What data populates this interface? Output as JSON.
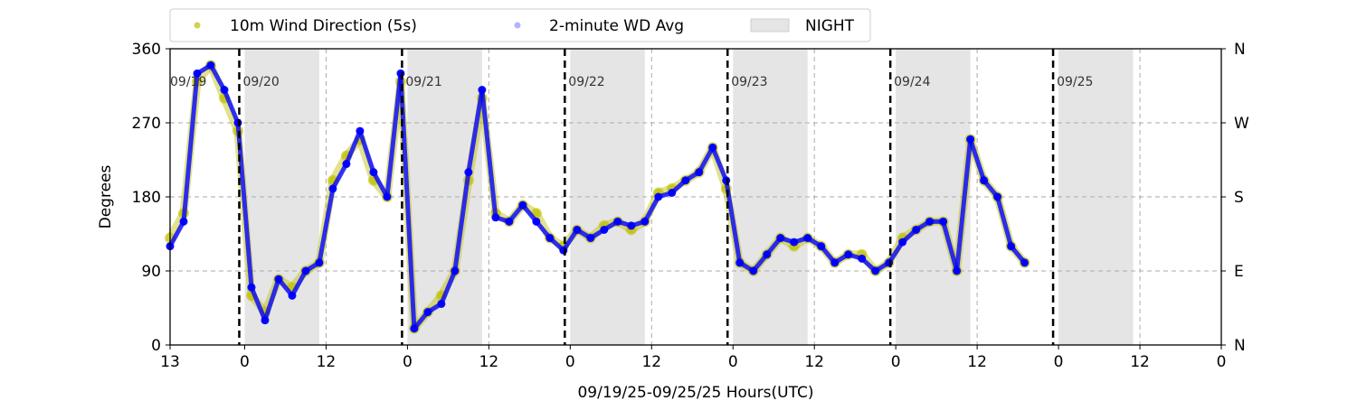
{
  "chart_data": {
    "type": "scatter",
    "xlabel": "09/19/25-09/25/25  Hours(UTC)",
    "ylabel": "Degrees",
    "x_unit": "hours (UTC)",
    "xlim": [
      "2025-09-19 13:00",
      "2025-09-26 00:00"
    ],
    "ylim": [
      0,
      360
    ],
    "yticks": [
      0,
      90,
      180,
      270,
      360
    ],
    "ytick_labels": [
      "0",
      "90",
      "180",
      "270",
      "360"
    ],
    "right_yticks": [
      0,
      90,
      180,
      270,
      360
    ],
    "right_ytick_labels": [
      "N",
      "E",
      "S",
      "W",
      "N"
    ],
    "xticks": [
      "2025-09-19 13:00",
      "2025-09-20 00:00",
      "2025-09-20 12:00",
      "2025-09-21 00:00",
      "2025-09-21 12:00",
      "2025-09-22 00:00",
      "2025-09-22 12:00",
      "2025-09-23 00:00",
      "2025-09-23 12:00",
      "2025-09-24 00:00",
      "2025-09-24 12:00",
      "2025-09-25 00:00",
      "2025-09-25 12:00",
      "2025-09-26 00:00"
    ],
    "xtick_labels": [
      "13",
      "0",
      "12",
      "0",
      "12",
      "0",
      "12",
      "0",
      "12",
      "0",
      "12",
      "0",
      "12",
      "0"
    ],
    "grid": "dashed gray at 90, 180, 270 and at 12 UTC",
    "legend_position": "top, above plot",
    "legend": [
      {
        "label": "10m Wind Direction (5s)",
        "marker": "dot",
        "color": "#bfbf00"
      },
      {
        "label": "2-minute WD Avg",
        "marker": "dot",
        "color": "#0000ff"
      },
      {
        "label": "NIGHT",
        "marker": "patch",
        "color": "#e5e5e5"
      }
    ],
    "day_labels": [
      {
        "text": "09/19",
        "x": "2025-09-19 13:00"
      },
      {
        "text": "09/20",
        "x": "2025-09-20 00:00"
      },
      {
        "text": "09/21",
        "x": "2025-09-21 00:00"
      },
      {
        "text": "09/22",
        "x": "2025-09-22 00:00"
      },
      {
        "text": "09/23",
        "x": "2025-09-23 00:00"
      },
      {
        "text": "09/24",
        "x": "2025-09-24 00:00"
      },
      {
        "text": "09/25",
        "x": "2025-09-25 00:00"
      }
    ],
    "midnight_lines": [
      "2025-09-20 00:00",
      "2025-09-21 00:00",
      "2025-09-22 00:00",
      "2025-09-23 00:00",
      "2025-09-24 00:00",
      "2025-09-25 00:00"
    ],
    "night_shading": [
      [
        "2025-09-20 00:00",
        "2025-09-20 11:00"
      ],
      [
        "2025-09-21 00:00",
        "2025-09-21 11:00"
      ],
      [
        "2025-09-22 00:00",
        "2025-09-22 11:00"
      ],
      [
        "2025-09-23 00:00",
        "2025-09-23 11:00"
      ],
      [
        "2025-09-24 00:00",
        "2025-09-24 11:00"
      ],
      [
        "2025-09-25 00:00",
        "2025-09-25 11:00"
      ]
    ],
    "series": [
      {
        "name": "10m Wind Direction (5s)",
        "color": "#bfbf00",
        "x": [
          "2025-09-19 13:00",
          "2025-09-19 15:00",
          "2025-09-19 17:00",
          "2025-09-19 19:00",
          "2025-09-19 21:00",
          "2025-09-19 23:00",
          "2025-09-20 01:00",
          "2025-09-20 03:00",
          "2025-09-20 05:00",
          "2025-09-20 07:00",
          "2025-09-20 09:00",
          "2025-09-20 11:00",
          "2025-09-20 13:00",
          "2025-09-20 15:00",
          "2025-09-20 17:00",
          "2025-09-20 19:00",
          "2025-09-20 21:00",
          "2025-09-20 23:00",
          "2025-09-21 01:00",
          "2025-09-21 03:00",
          "2025-09-21 05:00",
          "2025-09-21 07:00",
          "2025-09-21 09:00",
          "2025-09-21 11:00",
          "2025-09-21 13:00",
          "2025-09-21 15:00",
          "2025-09-21 17:00",
          "2025-09-21 19:00",
          "2025-09-21 21:00",
          "2025-09-21 23:00",
          "2025-09-22 01:00",
          "2025-09-22 03:00",
          "2025-09-22 05:00",
          "2025-09-22 07:00",
          "2025-09-22 09:00",
          "2025-09-22 11:00",
          "2025-09-22 13:00",
          "2025-09-22 15:00",
          "2025-09-22 17:00",
          "2025-09-22 19:00",
          "2025-09-22 21:00",
          "2025-09-22 23:00",
          "2025-09-23 01:00",
          "2025-09-23 03:00",
          "2025-09-23 05:00",
          "2025-09-23 07:00",
          "2025-09-23 09:00",
          "2025-09-23 11:00",
          "2025-09-23 13:00",
          "2025-09-23 15:00",
          "2025-09-23 17:00",
          "2025-09-23 19:00",
          "2025-09-23 21:00",
          "2025-09-23 23:00",
          "2025-09-24 01:00",
          "2025-09-24 03:00",
          "2025-09-24 05:00",
          "2025-09-24 07:00",
          "2025-09-24 09:00",
          "2025-09-24 11:00",
          "2025-09-24 13:00",
          "2025-09-24 15:00",
          "2025-09-24 17:00",
          "2025-09-24 19:00"
        ],
        "y": [
          130,
          160,
          320,
          340,
          300,
          260,
          60,
          40,
          80,
          70,
          90,
          100,
          200,
          230,
          250,
          200,
          180,
          320,
          20,
          40,
          60,
          90,
          200,
          300,
          160,
          150,
          170,
          160,
          130,
          120,
          140,
          130,
          145,
          150,
          140,
          150,
          185,
          190,
          200,
          210,
          240,
          190,
          100,
          90,
          110,
          130,
          120,
          130,
          120,
          100,
          110,
          110,
          90,
          100,
          130,
          140,
          150,
          150,
          90,
          250,
          200,
          180,
          120,
          100
        ]
      },
      {
        "name": "2-minute WD Avg",
        "color": "#0000ff",
        "x": [
          "2025-09-19 13:00",
          "2025-09-19 15:00",
          "2025-09-19 17:00",
          "2025-09-19 19:00",
          "2025-09-19 21:00",
          "2025-09-19 23:00",
          "2025-09-20 01:00",
          "2025-09-20 03:00",
          "2025-09-20 05:00",
          "2025-09-20 07:00",
          "2025-09-20 09:00",
          "2025-09-20 11:00",
          "2025-09-20 13:00",
          "2025-09-20 15:00",
          "2025-09-20 17:00",
          "2025-09-20 19:00",
          "2025-09-20 21:00",
          "2025-09-20 23:00",
          "2025-09-21 01:00",
          "2025-09-21 03:00",
          "2025-09-21 05:00",
          "2025-09-21 07:00",
          "2025-09-21 09:00",
          "2025-09-21 11:00",
          "2025-09-21 13:00",
          "2025-09-21 15:00",
          "2025-09-21 17:00",
          "2025-09-21 19:00",
          "2025-09-21 21:00",
          "2025-09-21 23:00",
          "2025-09-22 01:00",
          "2025-09-22 03:00",
          "2025-09-22 05:00",
          "2025-09-22 07:00",
          "2025-09-22 09:00",
          "2025-09-22 11:00",
          "2025-09-22 13:00",
          "2025-09-22 15:00",
          "2025-09-22 17:00",
          "2025-09-22 19:00",
          "2025-09-22 21:00",
          "2025-09-22 23:00",
          "2025-09-23 01:00",
          "2025-09-23 03:00",
          "2025-09-23 05:00",
          "2025-09-23 07:00",
          "2025-09-23 09:00",
          "2025-09-23 11:00",
          "2025-09-23 13:00",
          "2025-09-23 15:00",
          "2025-09-23 17:00",
          "2025-09-23 19:00",
          "2025-09-23 21:00",
          "2025-09-23 23:00",
          "2025-09-24 01:00",
          "2025-09-24 03:00",
          "2025-09-24 05:00",
          "2025-09-24 07:00",
          "2025-09-24 09:00",
          "2025-09-24 11:00",
          "2025-09-24 13:00",
          "2025-09-24 15:00",
          "2025-09-24 17:00",
          "2025-09-24 19:00"
        ],
        "y": [
          120,
          150,
          330,
          340,
          310,
          270,
          70,
          30,
          80,
          60,
          90,
          100,
          190,
          220,
          260,
          210,
          180,
          330,
          20,
          40,
          50,
          90,
          210,
          310,
          155,
          150,
          170,
          150,
          130,
          115,
          140,
          130,
          140,
          150,
          145,
          150,
          180,
          185,
          200,
          210,
          240,
          200,
          100,
          90,
          110,
          130,
          125,
          130,
          120,
          100,
          110,
          105,
          90,
          100,
          125,
          140,
          150,
          150,
          90,
          250,
          200,
          180,
          120,
          100
        ]
      }
    ]
  }
}
